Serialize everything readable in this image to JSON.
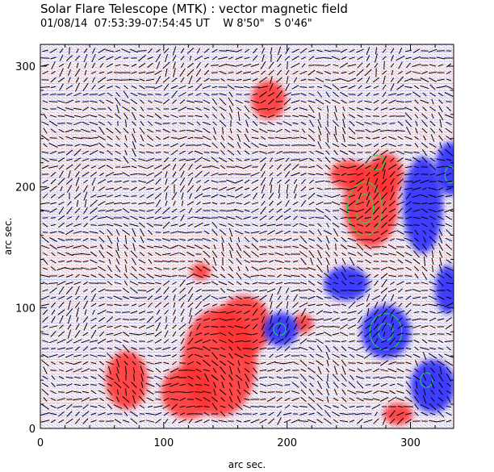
{
  "header": {
    "title": "Solar Flare Telescope (MTK) : vector magnetic field",
    "subtitle": "01/08/14  07:53:39-07:54:45 UT    W 8'50\"   S 0'46\""
  },
  "chart_data": {
    "type": "heatmap",
    "xlabel": "arc sec.",
    "ylabel": "arc sec.",
    "xlim": [
      0,
      335
    ],
    "ylim": [
      0,
      318
    ],
    "x_ticks": [
      0,
      100,
      200,
      300
    ],
    "y_ticks": [
      0,
      100,
      200,
      300
    ],
    "colors": {
      "positive": "#ff3030",
      "negative": "#2828ff",
      "contour": "#22dd44",
      "vector": "#000000"
    },
    "regions": [
      {
        "polarity": "positive",
        "x": 268,
        "y": 185,
        "rx": 22,
        "ry": 35
      },
      {
        "polarity": "positive",
        "x": 280,
        "y": 210,
        "rx": 14,
        "ry": 18
      },
      {
        "polarity": "positive",
        "x": 250,
        "y": 210,
        "rx": 15,
        "ry": 12
      },
      {
        "polarity": "positive",
        "x": 145,
        "y": 55,
        "rx": 30,
        "ry": 45
      },
      {
        "polarity": "positive",
        "x": 165,
        "y": 85,
        "rx": 22,
        "ry": 25
      },
      {
        "polarity": "positive",
        "x": 120,
        "y": 30,
        "rx": 22,
        "ry": 22
      },
      {
        "polarity": "positive",
        "x": 70,
        "y": 40,
        "rx": 17,
        "ry": 24
      },
      {
        "polarity": "positive",
        "x": 185,
        "y": 272,
        "rx": 14,
        "ry": 16
      },
      {
        "polarity": "positive",
        "x": 130,
        "y": 130,
        "rx": 8,
        "ry": 7
      },
      {
        "polarity": "positive",
        "x": 290,
        "y": 12,
        "rx": 12,
        "ry": 9
      },
      {
        "polarity": "positive",
        "x": 213,
        "y": 87,
        "rx": 8,
        "ry": 8
      },
      {
        "polarity": "negative",
        "x": 280,
        "y": 80,
        "rx": 20,
        "ry": 22
      },
      {
        "polarity": "negative",
        "x": 195,
        "y": 82,
        "rx": 14,
        "ry": 14
      },
      {
        "polarity": "negative",
        "x": 310,
        "y": 185,
        "rx": 16,
        "ry": 40
      },
      {
        "polarity": "negative",
        "x": 332,
        "y": 215,
        "rx": 12,
        "ry": 22
      },
      {
        "polarity": "negative",
        "x": 318,
        "y": 35,
        "rx": 18,
        "ry": 22
      },
      {
        "polarity": "negative",
        "x": 248,
        "y": 120,
        "rx": 18,
        "ry": 14
      },
      {
        "polarity": "negative",
        "x": 330,
        "y": 115,
        "rx": 10,
        "ry": 20
      }
    ],
    "contours": [
      {
        "x": 263,
        "y": 182,
        "rx": 7,
        "ry": 12
      },
      {
        "x": 263,
        "y": 182,
        "rx": 14,
        "ry": 22
      },
      {
        "x": 272,
        "y": 220,
        "rx": 7,
        "ry": 6
      },
      {
        "x": 280,
        "y": 80,
        "rx": 6,
        "ry": 7
      },
      {
        "x": 280,
        "y": 80,
        "rx": 13,
        "ry": 15
      },
      {
        "x": 194,
        "y": 82,
        "rx": 5,
        "ry": 5
      },
      {
        "x": 313,
        "y": 40,
        "rx": 5,
        "ry": 6
      },
      {
        "x": 332,
        "y": 210,
        "rx": 4,
        "ry": 7
      }
    ]
  }
}
